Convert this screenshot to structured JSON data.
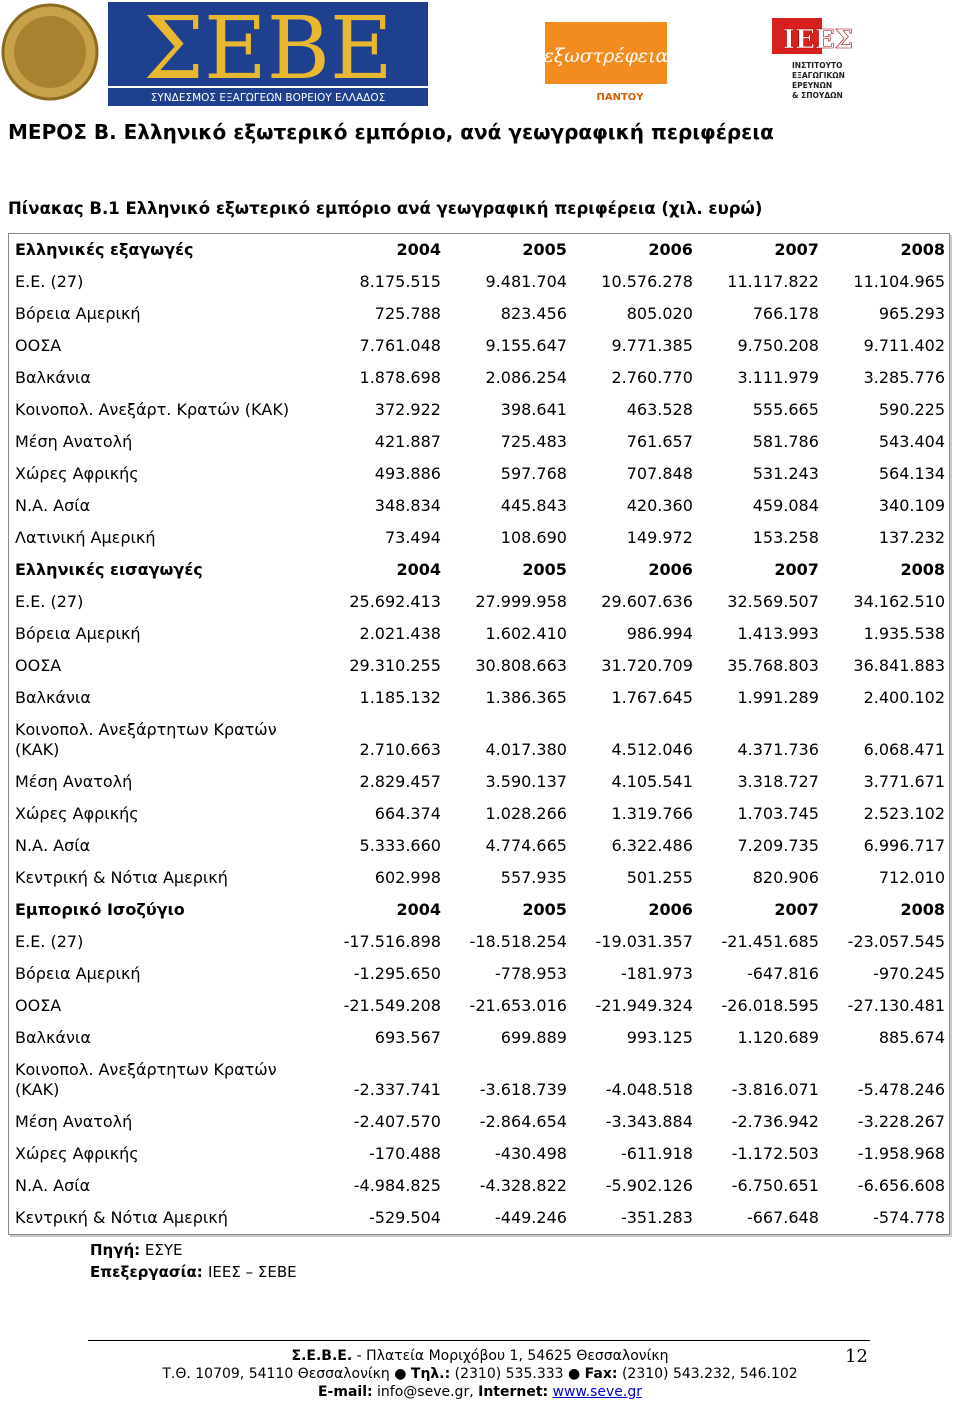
{
  "header": {
    "seve_logo": {
      "text": "ΣΕΒΕ",
      "subtitle": "ΣΥΝΔΕΣΜΟΣ ΕΞΑΓΩΓΕΩΝ ΒΟΡΕΙΟΥ ΕΛΛΑΔΟΣ"
    },
    "exostrefeia_logo": {
      "text": "εξωστρέφεια",
      "subtitle": "ΠΑΝΤΟΥ"
    },
    "iees_logo": {
      "text": "ΙΕΕΣ",
      "lines": [
        "ΙΝΣΤΙΤΟΥΤΟ",
        "ΕΞΑΓΩΓΙΚΩΝ",
        "ΕΡΕΥΝΩΝ",
        "& ΣΠΟΥΔΩΝ"
      ]
    }
  },
  "section_title": "ΜΕΡΟΣ Β. Ελληνικό εξωτερικό εμπόριο, ανά γεωγραφική περιφέρεια",
  "table_title": "Πίνακας Β.1 Ελληνικό εξωτερικό εμπόριο ανά γεωγραφική περιφέρεια (χιλ. ευρώ)",
  "table": {
    "sections": [
      {
        "header": [
          "Ελληνικές εξαγωγές",
          "2004",
          "2005",
          "2006",
          "2007",
          "2008"
        ],
        "rows": [
          [
            "Ε.Ε. (27)",
            "8.175.515",
            "9.481.704",
            "10.576.278",
            "11.117.822",
            "11.104.965"
          ],
          [
            "Βόρεια Αμερική",
            "725.788",
            "823.456",
            "805.020",
            "766.178",
            "965.293"
          ],
          [
            "ΟΟΣΑ",
            "7.761.048",
            "9.155.647",
            "9.771.385",
            "9.750.208",
            "9.711.402"
          ],
          [
            "Βαλκάνια",
            "1.878.698",
            "2.086.254",
            "2.760.770",
            "3.111.979",
            "3.285.776"
          ],
          [
            "Κοινοπολ. Ανεξάρτ. Κρατών (ΚΑΚ)",
            "372.922",
            "398.641",
            "463.528",
            "555.665",
            "590.225"
          ],
          [
            "Μέση Ανατολή",
            "421.887",
            "725.483",
            "761.657",
            "581.786",
            "543.404"
          ],
          [
            "Χώρες Αφρικής",
            "493.886",
            "597.768",
            "707.848",
            "531.243",
            "564.134"
          ],
          [
            "Ν.Α. Ασία",
            "348.834",
            "445.843",
            "420.360",
            "459.084",
            "340.109"
          ],
          [
            "Λατινική Αμερική",
            "73.494",
            "108.690",
            "149.972",
            "153.258",
            "137.232"
          ]
        ]
      },
      {
        "header": [
          "Ελληνικές εισαγωγές",
          "2004",
          "2005",
          "2006",
          "2007",
          "2008"
        ],
        "rows": [
          [
            "Ε.Ε. (27)",
            "25.692.413",
            "27.999.958",
            "29.607.636",
            "32.569.507",
            "34.162.510"
          ],
          [
            "Βόρεια Αμερική",
            "2.021.438",
            "1.602.410",
            "986.994",
            "1.413.993",
            "1.935.538"
          ],
          [
            "ΟΟΣΑ",
            "29.310.255",
            "30.808.663",
            "31.720.709",
            "35.768.803",
            "36.841.883"
          ],
          [
            "Βαλκάνια",
            "1.185.132",
            "1.386.365",
            "1.767.645",
            "1.991.289",
            "2.400.102"
          ],
          [
            "Κοινοπολ. Ανεξάρτητων Κρατών (ΚΑΚ)",
            "2.710.663",
            "4.017.380",
            "4.512.046",
            "4.371.736",
            "6.068.471"
          ],
          [
            "Μέση Ανατολή",
            "2.829.457",
            "3.590.137",
            "4.105.541",
            "3.318.727",
            "3.771.671"
          ],
          [
            "Χώρες Αφρικής",
            "664.374",
            "1.028.266",
            "1.319.766",
            "1.703.745",
            "2.523.102"
          ],
          [
            "Ν.Α. Ασία",
            "5.333.660",
            "4.774.665",
            "6.322.486",
            "7.209.735",
            "6.996.717"
          ],
          [
            "Κεντρική & Νότια Αμερική",
            "602.998",
            "557.935",
            "501.255",
            "820.906",
            "712.010"
          ]
        ]
      },
      {
        "header": [
          "Εμπορικό Ισοζύγιο",
          "2004",
          "2005",
          "2006",
          "2007",
          "2008"
        ],
        "rows": [
          [
            "Ε.Ε. (27)",
            "-17.516.898",
            "-18.518.254",
            "-19.031.357",
            "-21.451.685",
            "-23.057.545"
          ],
          [
            "Βόρεια Αμερική",
            "-1.295.650",
            "-778.953",
            "-181.973",
            "-647.816",
            "-970.245"
          ],
          [
            "ΟΟΣΑ",
            "-21.549.208",
            "-21.653.016",
            "-21.949.324",
            "-26.018.595",
            "-27.130.481"
          ],
          [
            "Βαλκάνια",
            "693.567",
            "699.889",
            "993.125",
            "1.120.689",
            "885.674"
          ],
          [
            "Κοινοπολ. Ανεξάρτητων Κρατών (ΚΑΚ)",
            "-2.337.741",
            "-3.618.739",
            "-4.048.518",
            "-3.816.071",
            "-5.478.246"
          ],
          [
            "Μέση Ανατολή",
            "-2.407.570",
            "-2.864.654",
            "-3.343.884",
            "-2.736.942",
            "-3.228.267"
          ],
          [
            "Χώρες Αφρικής",
            "-170.488",
            "-430.498",
            "-611.918",
            "-1.172.503",
            "-1.958.968"
          ],
          [
            "Ν.Α. Ασία",
            "-4.984.825",
            "-4.328.822",
            "-5.902.126",
            "-6.750.651",
            "-6.656.608"
          ],
          [
            "Κεντρική & Νότια Αμερική",
            "-529.504",
            "-449.246",
            "-351.283",
            "-667.648",
            "-574.778"
          ]
        ]
      }
    ]
  },
  "source": {
    "label": "Πηγή:",
    "value": "ΕΣΥΕ"
  },
  "processing": {
    "label": "Επεξεργασία:",
    "value": "ΙΕΕΣ – ΣΕΒΕ"
  },
  "footer": {
    "line1": {
      "org": "Σ.Ε.Β.Ε.",
      "address": "- Πλατεία Μοριχόβου 1, 54625 Θεσσαλονίκη"
    },
    "line2": {
      "po": "Τ.Θ. 10709, 54110 Θεσσαλονίκη ●",
      "tel_label": "Τηλ.:",
      "tel": "(2310) 535.333 ●",
      "fax_label": "Fax:",
      "fax": "(2310) 543.232, 546.102"
    },
    "line3": {
      "email_label": "E-mail:",
      "email": "info@seve.gr,",
      "internet_label": "Internet:",
      "url": "www.seve.gr"
    },
    "page_number": "12"
  }
}
